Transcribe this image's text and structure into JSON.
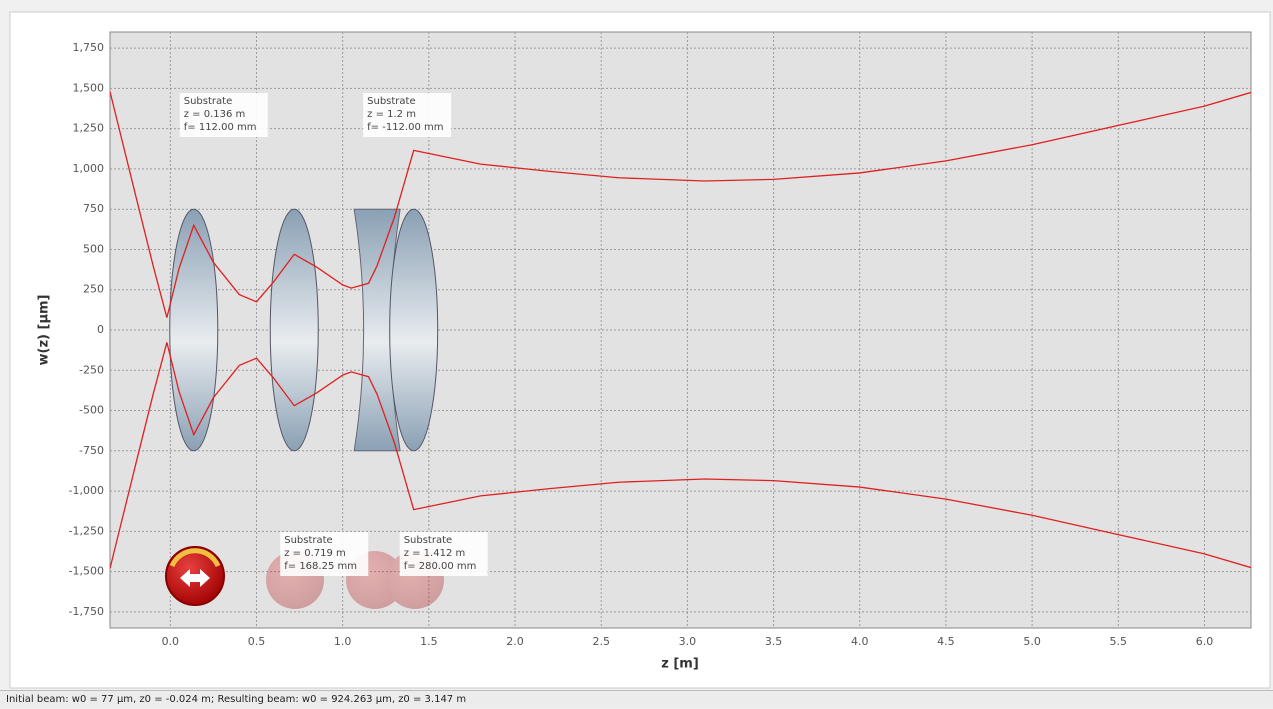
{
  "chart_data": {
    "type": "line",
    "xlabel": "z [m]",
    "ylabel": "w(z) [µm]",
    "x": [
      -0.35,
      -0.2,
      -0.1,
      -0.02,
      0.05,
      0.136,
      0.25,
      0.4,
      0.5,
      0.6,
      0.719,
      0.85,
      1.0,
      1.05,
      1.15,
      1.2,
      1.3,
      1.412,
      1.8,
      2.2,
      2.6,
      3.1,
      3.5,
      4.0,
      4.5,
      5.0,
      5.5,
      6.0,
      6.27
    ],
    "series": [
      {
        "color": "#e02020",
        "values": [
          1480,
          830,
          400,
          77,
          380,
          650,
          420,
          220,
          175,
          300,
          470,
          390,
          280,
          260,
          290,
          400,
          700,
          1115,
          1030,
          985,
          945,
          925,
          935,
          975,
          1050,
          1150,
          1270,
          1390,
          1475
        ]
      },
      {
        "color": "#e02020",
        "values": [
          -1480,
          -830,
          -400,
          -77,
          -380,
          -650,
          -420,
          -220,
          -175,
          -300,
          -470,
          -390,
          -280,
          -260,
          -290,
          -400,
          -700,
          -1115,
          -1030,
          -985,
          -945,
          -925,
          -935,
          -975,
          -1050,
          -1150,
          -1270,
          -1390,
          -1475
        ]
      }
    ],
    "xlim": [
      -0.35,
      6.27
    ],
    "ylim": [
      -1850,
      1850
    ],
    "xticks": [
      {
        "value": 0,
        "label": "0.0"
      },
      0.5,
      {
        "value": 1,
        "label": "1.0"
      },
      1.5,
      {
        "value": 2,
        "label": "2.0"
      },
      2.5,
      {
        "value": 3,
        "label": "3.0"
      },
      3.5,
      {
        "value": 4,
        "label": "4.0"
      },
      4.5,
      {
        "value": 5,
        "label": "5.0"
      },
      5.5,
      {
        "value": 6,
        "label": "6.0"
      }
    ],
    "yticks": [
      {
        "value": -1750,
        "label": "-1,750"
      },
      {
        "value": -1500,
        "label": "-1,500"
      },
      {
        "value": -1250,
        "label": "-1,250"
      },
      {
        "value": -1000,
        "label": "-1,000"
      },
      -750,
      -500,
      -250,
      0,
      250,
      500,
      750,
      {
        "value": 1000,
        "label": "1,000"
      },
      {
        "value": 1250,
        "label": "1,250"
      },
      {
        "value": 1500,
        "label": "1,500"
      },
      {
        "value": 1750,
        "label": "1,750"
      }
    ],
    "grid": true,
    "lenses": [
      {
        "name": "Substrate",
        "z": 0.136,
        "z_label": "z = 0.136 m",
        "f": 112.0,
        "f_label": "f= 112.00 mm"
      },
      {
        "name": "Substrate",
        "z": 0.719,
        "z_label": "z = 0.719 m",
        "f": 168.25,
        "f_label": "f= 168.25 mm"
      },
      {
        "name": "Substrate",
        "z": 1.2,
        "z_label": "z = 1.2 m",
        "f": -112.0,
        "f_label": "f= -112.00 mm"
      },
      {
        "name": "Substrate",
        "z": 1.412,
        "z_label": "z = 1.412 m",
        "f": 280.0,
        "f_label": "f= 280.00 mm"
      }
    ]
  },
  "status": "Initial beam: w0 = 77 µm, z0 = -0.024 m; Resulting beam: w0 = 924.263 µm, z0 = 3.147 m"
}
